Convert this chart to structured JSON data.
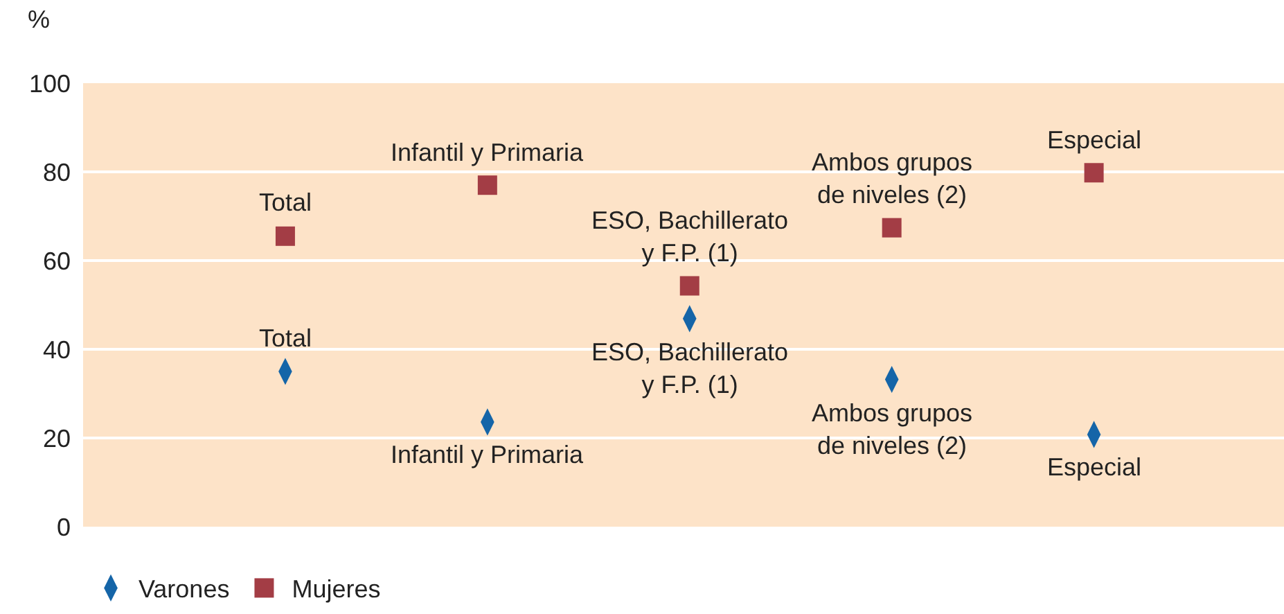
{
  "chart_data": {
    "type": "scatter",
    "ylabel": "%",
    "categories": [
      null,
      null,
      null,
      null,
      null
    ],
    "ylim": [
      0,
      100
    ],
    "yticks": [
      0,
      20,
      40,
      60,
      80,
      100
    ],
    "grid": "y",
    "legend": "bottom left",
    "series": [
      {
        "name": "Varones",
        "color": "#1565a8",
        "marker": "diamond",
        "values": [
          35,
          23.6,
          46.9,
          33.2,
          20.8
        ]
      },
      {
        "name": "Mujeres",
        "color": "#a33d45",
        "marker": "square",
        "values": [
          65.5,
          77,
          54.3,
          67.4,
          79.8
        ]
      }
    ],
    "annotations": [
      {
        "text": "Total",
        "y": 35
      },
      {
        "text": "Infantil y Primaria",
        "y": 23.6
      },
      {
        "text": "ESO, Bachillerato\ny F.P. (1)",
        "y": 46.9
      },
      {
        "text": "Ambos grupos\nde niveles (2)",
        "y": 33.2
      },
      {
        "text": "Especial",
        "y": 20.8
      },
      {
        "text": "Total",
        "y": 65.5
      },
      {
        "text": "Infantil y Primaria",
        "y": 77
      },
      {
        "text": "ESO, Bachillerato\ny F.P. (1)",
        "y": 54.3
      },
      {
        "text": "Ambos grupos\nde niveles (2)",
        "y": 67.4
      },
      {
        "text": "Especial",
        "y": 79.8
      }
    ]
  }
}
